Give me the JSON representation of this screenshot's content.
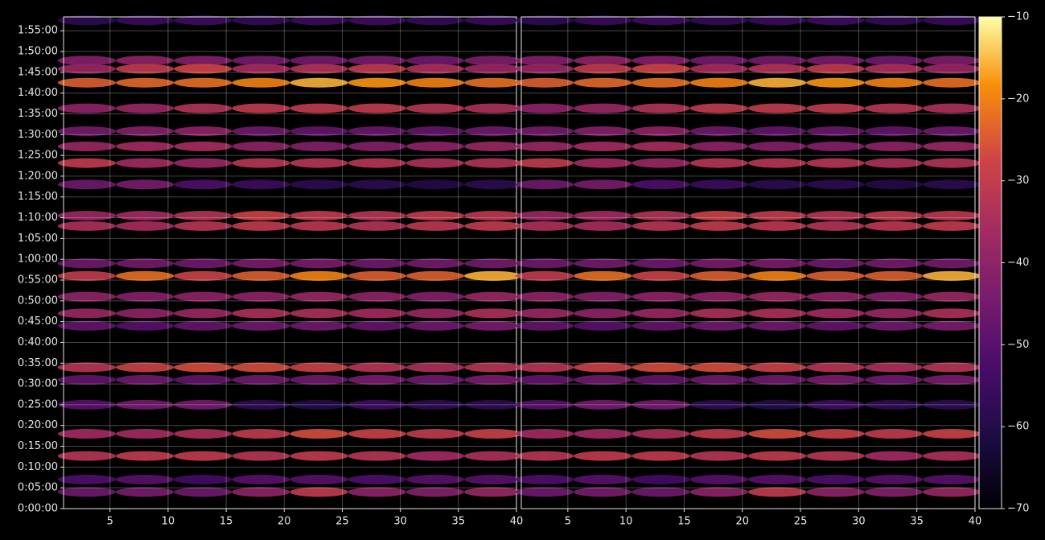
{
  "chart_data": [
    {
      "type": "heatmap",
      "x": [
        3,
        8,
        13,
        18,
        23,
        28,
        33,
        38
      ],
      "xlim": [
        1,
        40
      ],
      "xticks": [
        5,
        10,
        15,
        20,
        25,
        30,
        35,
        40
      ],
      "y": [
        7050,
        6470,
        6350,
        6150,
        5780,
        5450,
        5230,
        4990,
        4680,
        4230,
        4080,
        3540,
        3360,
        3060,
        2820,
        2640,
        2040,
        1860,
        1500,
        1080,
        760,
        420,
        240
      ],
      "ylim": [
        0,
        7100
      ],
      "yticks": [
        {
          "value": 0,
          "label": "0:00:00"
        },
        {
          "value": 300,
          "label": "0:05:00"
        },
        {
          "value": 600,
          "label": "0:10:00"
        },
        {
          "value": 900,
          "label": "0:15:00"
        },
        {
          "value": 1200,
          "label": "0:20:00"
        },
        {
          "value": 1500,
          "label": "0:25:00"
        },
        {
          "value": 1800,
          "label": "0:30:00"
        },
        {
          "value": 2100,
          "label": "0:35:00"
        },
        {
          "value": 2400,
          "label": "0:40:00"
        },
        {
          "value": 2700,
          "label": "0:45:00"
        },
        {
          "value": 3000,
          "label": "0:50:00"
        },
        {
          "value": 3300,
          "label": "0:55:00"
        },
        {
          "value": 3600,
          "label": "1:00:00"
        },
        {
          "value": 3900,
          "label": "1:05:00"
        },
        {
          "value": 4200,
          "label": "1:10:00"
        },
        {
          "value": 4500,
          "label": "1:15:00"
        },
        {
          "value": 4800,
          "label": "1:20:00"
        },
        {
          "value": 5100,
          "label": "1:25:00"
        },
        {
          "value": 5400,
          "label": "1:30:00"
        },
        {
          "value": 5700,
          "label": "1:35:00"
        },
        {
          "value": 6000,
          "label": "1:40:00"
        },
        {
          "value": 6300,
          "label": "1:45:00"
        },
        {
          "value": 6600,
          "label": "1:50:00"
        },
        {
          "value": 6900,
          "label": "1:55:00"
        }
      ],
      "grid": true,
      "values": [
        [
          -58,
          -56,
          -55,
          -57,
          -56,
          -55,
          -57,
          -56
        ],
        [
          -42,
          -40,
          -42,
          -45,
          -45,
          -44,
          -46,
          -43
        ],
        [
          -38,
          -30,
          -27,
          -35,
          -33,
          -30,
          -34,
          -38
        ],
        [
          -24,
          -23,
          -22,
          -20,
          -16,
          -18,
          -20,
          -22
        ],
        [
          -40,
          -38,
          -33,
          -30,
          -30,
          -30,
          -32,
          -34
        ],
        [
          -45,
          -42,
          -40,
          -46,
          -48,
          -47,
          -48,
          -46
        ],
        [
          -38,
          -36,
          -35,
          -40,
          -42,
          -42,
          -40,
          -38
        ],
        [
          -30,
          -36,
          -38,
          -32,
          -32,
          -32,
          -34,
          -33
        ],
        [
          -46,
          -44,
          -52,
          -55,
          -58,
          -58,
          -60,
          -58
        ],
        [
          -38,
          -36,
          -33,
          -28,
          -30,
          -32,
          -30,
          -31
        ],
        [
          -34,
          -35,
          -32,
          -30,
          -31,
          -33,
          -31,
          -30
        ],
        [
          -46,
          -45,
          -46,
          -44,
          -44,
          -46,
          -45,
          -45
        ],
        [
          -30,
          -22,
          -28,
          -24,
          -20,
          -24,
          -24,
          -16
        ],
        [
          -40,
          -42,
          -40,
          -40,
          -38,
          -40,
          -42,
          -38
        ],
        [
          -38,
          -40,
          -38,
          -34,
          -34,
          -36,
          -38,
          -34
        ],
        [
          -48,
          -50,
          -48,
          -46,
          -46,
          -48,
          -46,
          -44
        ],
        [
          -32,
          -28,
          -26,
          -26,
          -28,
          -32,
          -34,
          -32
        ],
        [
          -48,
          -46,
          -48,
          -46,
          -46,
          -44,
          -46,
          -44
        ],
        [
          -50,
          -45,
          -45,
          -58,
          -60,
          -55,
          -58,
          -58
        ],
        [
          -36,
          -36,
          -34,
          -30,
          -26,
          -28,
          -30,
          -28
        ],
        [
          -32,
          -30,
          -30,
          -32,
          -30,
          -32,
          -36,
          -34
        ],
        [
          -52,
          -50,
          -54,
          -50,
          -50,
          -52,
          -50,
          -50
        ],
        [
          -46,
          -44,
          -46,
          -40,
          -30,
          -40,
          -42,
          -38
        ]
      ]
    },
    {
      "type": "heatmap",
      "x": [
        3,
        8,
        13,
        18,
        23,
        28,
        33,
        38
      ],
      "xlim": [
        1,
        40
      ],
      "xticks": [
        5,
        10,
        15,
        20,
        25,
        30,
        35,
        40
      ],
      "y": [
        7050,
        6470,
        6350,
        6150,
        5780,
        5450,
        5230,
        4990,
        4680,
        4230,
        4080,
        3540,
        3360,
        3060,
        2820,
        2640,
        2040,
        1860,
        1500,
        1080,
        760,
        420,
        240
      ],
      "ylim": [
        0,
        7100
      ],
      "grid": true,
      "values": [
        [
          -58,
          -56,
          -55,
          -57,
          -56,
          -55,
          -57,
          -56
        ],
        [
          -42,
          -40,
          -42,
          -45,
          -45,
          -44,
          -46,
          -43
        ],
        [
          -38,
          -30,
          -27,
          -35,
          -33,
          -30,
          -34,
          -38
        ],
        [
          -24,
          -23,
          -22,
          -20,
          -16,
          -18,
          -20,
          -22
        ],
        [
          -40,
          -38,
          -33,
          -30,
          -30,
          -30,
          -32,
          -34
        ],
        [
          -45,
          -42,
          -40,
          -46,
          -48,
          -47,
          -48,
          -46
        ],
        [
          -38,
          -36,
          -35,
          -40,
          -42,
          -42,
          -40,
          -38
        ],
        [
          -30,
          -36,
          -38,
          -32,
          -32,
          -32,
          -34,
          -33
        ],
        [
          -46,
          -44,
          -52,
          -55,
          -58,
          -58,
          -60,
          -58
        ],
        [
          -38,
          -36,
          -33,
          -28,
          -30,
          -32,
          -30,
          -31
        ],
        [
          -34,
          -35,
          -32,
          -30,
          -31,
          -33,
          -31,
          -30
        ],
        [
          -46,
          -45,
          -46,
          -44,
          -44,
          -46,
          -45,
          -45
        ],
        [
          -30,
          -22,
          -28,
          -24,
          -20,
          -24,
          -24,
          -16
        ],
        [
          -40,
          -42,
          -40,
          -40,
          -38,
          -40,
          -42,
          -38
        ],
        [
          -38,
          -40,
          -38,
          -34,
          -34,
          -36,
          -38,
          -34
        ],
        [
          -48,
          -50,
          -48,
          -46,
          -46,
          -48,
          -46,
          -44
        ],
        [
          -32,
          -28,
          -26,
          -26,
          -28,
          -32,
          -34,
          -32
        ],
        [
          -48,
          -46,
          -48,
          -46,
          -46,
          -44,
          -46,
          -44
        ],
        [
          -50,
          -45,
          -45,
          -58,
          -60,
          -55,
          -58,
          -58
        ],
        [
          -36,
          -36,
          -34,
          -30,
          -26,
          -28,
          -30,
          -28
        ],
        [
          -32,
          -30,
          -30,
          -32,
          -30,
          -32,
          -36,
          -34
        ],
        [
          -52,
          -50,
          -54,
          -50,
          -50,
          -52,
          -50,
          -50
        ],
        [
          -46,
          -44,
          -46,
          -40,
          -30,
          -40,
          -42,
          -38
        ]
      ],
      "zlim": [
        -70,
        -10
      ],
      "zticks": [
        {
          "value": -70,
          "label": "−70"
        },
        {
          "value": -60,
          "label": "−60"
        },
        {
          "value": -50,
          "label": "−50"
        },
        {
          "value": -40,
          "label": "−40"
        },
        {
          "value": -30,
          "label": "−30"
        },
        {
          "value": -20,
          "label": "−20"
        },
        {
          "value": -10,
          "label": "−10"
        }
      ]
    }
  ]
}
